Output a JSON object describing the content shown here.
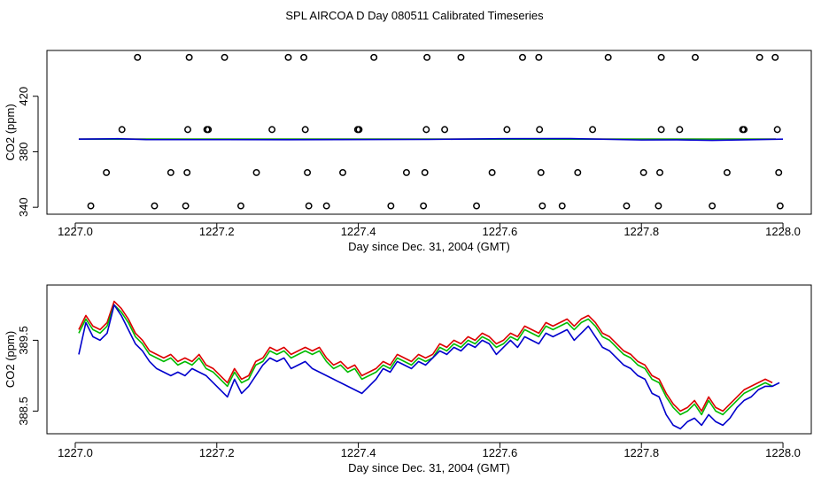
{
  "title": "SPL AIRCOA D  Day 080511  Calibrated Timeseries",
  "chart_data": [
    {
      "type": "scatter",
      "ylabel": "CO2 (ppm)",
      "xlabel": "Day since Dec. 31, 2004 (GMT)",
      "xlim": [
        1226.96,
        1228.04
      ],
      "ylim": [
        335,
        453
      ],
      "xticks": [
        1227.0,
        1227.2,
        1227.4,
        1227.6,
        1227.8,
        1228.0
      ],
      "xtick_labels": [
        "1227.0",
        "1227.2",
        "1227.4",
        "1227.6",
        "1227.8",
        "1228.0"
      ],
      "yticks": [
        340,
        380,
        420
      ],
      "ytick_labels": [
        "340",
        "380",
        "420"
      ],
      "points": [
        [
          1227.088,
          448
        ],
        [
          1227.161,
          448
        ],
        [
          1227.211,
          448
        ],
        [
          1227.301,
          448
        ],
        [
          1227.323,
          448
        ],
        [
          1227.422,
          448
        ],
        [
          1227.497,
          448
        ],
        [
          1227.545,
          448
        ],
        [
          1227.632,
          448
        ],
        [
          1227.655,
          448
        ],
        [
          1227.753,
          448
        ],
        [
          1227.828,
          448
        ],
        [
          1227.876,
          448
        ],
        [
          1227.967,
          448
        ],
        [
          1227.989,
          448
        ],
        [
          1227.066,
          396
        ],
        [
          1227.159,
          396
        ],
        [
          1227.186,
          396
        ],
        [
          1227.188,
          396
        ],
        [
          1227.278,
          396
        ],
        [
          1227.325,
          396
        ],
        [
          1227.399,
          396
        ],
        [
          1227.401,
          396
        ],
        [
          1227.496,
          396
        ],
        [
          1227.522,
          396
        ],
        [
          1227.61,
          396
        ],
        [
          1227.656,
          396
        ],
        [
          1227.731,
          396
        ],
        [
          1227.828,
          396
        ],
        [
          1227.854,
          396
        ],
        [
          1227.943,
          396
        ],
        [
          1227.945,
          396
        ],
        [
          1227.992,
          396
        ],
        [
          1227.044,
          365
        ],
        [
          1227.135,
          365
        ],
        [
          1227.158,
          365
        ],
        [
          1227.256,
          365
        ],
        [
          1227.328,
          365
        ],
        [
          1227.378,
          365
        ],
        [
          1227.468,
          365
        ],
        [
          1227.494,
          365
        ],
        [
          1227.589,
          365
        ],
        [
          1227.658,
          365
        ],
        [
          1227.71,
          365
        ],
        [
          1227.803,
          365
        ],
        [
          1227.826,
          365
        ],
        [
          1227.921,
          365
        ],
        [
          1227.994,
          365
        ],
        [
          1227.022,
          341
        ],
        [
          1227.112,
          341
        ],
        [
          1227.156,
          341
        ],
        [
          1227.234,
          341
        ],
        [
          1227.33,
          341
        ],
        [
          1227.355,
          341
        ],
        [
          1227.446,
          341
        ],
        [
          1227.492,
          341
        ],
        [
          1227.567,
          341
        ],
        [
          1227.66,
          341
        ],
        [
          1227.688,
          341
        ],
        [
          1227.779,
          341
        ],
        [
          1227.824,
          341
        ],
        [
          1227.9,
          341
        ],
        [
          1227.996,
          341
        ]
      ],
      "series": [
        {
          "name": "red",
          "color": "#dd0000",
          "values": [
            [
              1227.005,
              389.1
            ],
            [
              1227.8,
              389.1
            ],
            [
              1227.99,
              389.1
            ]
          ]
        },
        {
          "name": "green",
          "color": "#00bb00",
          "values": [
            [
              1227.005,
              389.1
            ],
            [
              1227.8,
              389.1
            ],
            [
              1227.99,
              389.1
            ]
          ]
        },
        {
          "name": "blue",
          "color": "#0000cc",
          "values": [
            [
              1227.005,
              389.1
            ],
            [
              1227.06,
              389.4
            ],
            [
              1227.1,
              388.8
            ],
            [
              1227.3,
              388.7
            ],
            [
              1227.5,
              388.9
            ],
            [
              1227.6,
              389.4
            ],
            [
              1227.7,
              389.5
            ],
            [
              1227.8,
              388.5
            ],
            [
              1227.85,
              388.6
            ],
            [
              1227.9,
              388.2
            ],
            [
              1228.0,
              389.1
            ]
          ]
        }
      ]
    },
    {
      "type": "line",
      "ylabel": "CO2 (ppm)",
      "xlabel": "Day since Dec. 31, 2004 (GMT)",
      "xlim": [
        1226.96,
        1228.04
      ],
      "ylim": [
        388.18,
        390.28
      ],
      "xticks": [
        1227.0,
        1227.2,
        1227.4,
        1227.6,
        1227.8,
        1228.0
      ],
      "xtick_labels": [
        "1227.0",
        "1227.2",
        "1227.4",
        "1227.6",
        "1227.8",
        "1228.0"
      ],
      "yticks": [
        388.5,
        389.5
      ],
      "ytick_labels": [
        "388.5",
        "389.5"
      ],
      "series": [
        {
          "name": "red",
          "color": "#dd0000",
          "x": [
            1227.005,
            1227.015,
            1227.025,
            1227.035,
            1227.045,
            1227.055,
            1227.065,
            1227.075,
            1227.085,
            1227.095,
            1227.105,
            1227.115,
            1227.125,
            1227.135,
            1227.145,
            1227.155,
            1227.165,
            1227.175,
            1227.185,
            1227.195,
            1227.205,
            1227.215,
            1227.225,
            1227.235,
            1227.245,
            1227.255,
            1227.265,
            1227.275,
            1227.285,
            1227.295,
            1227.305,
            1227.315,
            1227.325,
            1227.335,
            1227.345,
            1227.355,
            1227.365,
            1227.375,
            1227.385,
            1227.395,
            1227.405,
            1227.415,
            1227.425,
            1227.435,
            1227.445,
            1227.455,
            1227.465,
            1227.475,
            1227.485,
            1227.495,
            1227.505,
            1227.515,
            1227.525,
            1227.535,
            1227.545,
            1227.555,
            1227.565,
            1227.575,
            1227.585,
            1227.595,
            1227.605,
            1227.615,
            1227.625,
            1227.635,
            1227.645,
            1227.655,
            1227.665,
            1227.675,
            1227.685,
            1227.695,
            1227.705,
            1227.715,
            1227.725,
            1227.735,
            1227.745,
            1227.755,
            1227.765,
            1227.775,
            1227.785,
            1227.795,
            1227.805,
            1227.815,
            1227.825,
            1227.835,
            1227.845,
            1227.855,
            1227.865,
            1227.875,
            1227.885,
            1227.895,
            1227.905,
            1227.915,
            1227.925,
            1227.935,
            1227.945,
            1227.955,
            1227.965,
            1227.975,
            1227.985
          ],
          "values": [
            389.65,
            389.85,
            389.7,
            389.65,
            389.75,
            390.05,
            389.95,
            389.8,
            389.6,
            389.5,
            389.35,
            389.3,
            389.25,
            389.3,
            389.2,
            389.25,
            389.2,
            389.3,
            389.15,
            389.1,
            389.0,
            388.9,
            389.1,
            388.95,
            389.0,
            389.2,
            389.25,
            389.4,
            389.35,
            389.4,
            389.3,
            389.35,
            389.4,
            389.35,
            389.4,
            389.25,
            389.15,
            389.2,
            389.1,
            389.15,
            389.0,
            389.05,
            389.1,
            389.2,
            389.15,
            389.3,
            389.25,
            389.2,
            389.3,
            389.25,
            389.3,
            389.45,
            389.4,
            389.5,
            389.45,
            389.55,
            389.5,
            389.6,
            389.55,
            389.45,
            389.5,
            389.6,
            389.55,
            389.7,
            389.65,
            389.6,
            389.75,
            389.7,
            389.75,
            389.8,
            389.7,
            389.8,
            389.85,
            389.75,
            389.6,
            389.55,
            389.45,
            389.35,
            389.3,
            389.2,
            389.15,
            389.0,
            388.95,
            388.75,
            388.6,
            388.5,
            388.55,
            388.65,
            388.5,
            388.7,
            388.55,
            388.5,
            388.6,
            388.7,
            388.8,
            388.85,
            388.9,
            388.95,
            388.9
          ]
        },
        {
          "name": "green",
          "color": "#00bb00",
          "x": [
            1227.005,
            1227.015,
            1227.025,
            1227.035,
            1227.045,
            1227.055,
            1227.065,
            1227.075,
            1227.085,
            1227.095,
            1227.105,
            1227.115,
            1227.125,
            1227.135,
            1227.145,
            1227.155,
            1227.165,
            1227.175,
            1227.185,
            1227.195,
            1227.205,
            1227.215,
            1227.225,
            1227.235,
            1227.245,
            1227.255,
            1227.265,
            1227.275,
            1227.285,
            1227.295,
            1227.305,
            1227.315,
            1227.325,
            1227.335,
            1227.345,
            1227.355,
            1227.365,
            1227.375,
            1227.385,
            1227.395,
            1227.405,
            1227.415,
            1227.425,
            1227.435,
            1227.445,
            1227.455,
            1227.465,
            1227.475,
            1227.485,
            1227.495,
            1227.505,
            1227.515,
            1227.525,
            1227.535,
            1227.545,
            1227.555,
            1227.565,
            1227.575,
            1227.585,
            1227.595,
            1227.605,
            1227.615,
            1227.625,
            1227.635,
            1227.645,
            1227.655,
            1227.665,
            1227.675,
            1227.685,
            1227.695,
            1227.705,
            1227.715,
            1227.725,
            1227.735,
            1227.745,
            1227.755,
            1227.765,
            1227.775,
            1227.785,
            1227.795,
            1227.805,
            1227.815,
            1227.825,
            1227.835,
            1227.845,
            1227.855,
            1227.865,
            1227.875,
            1227.885,
            1227.895,
            1227.905,
            1227.915,
            1227.925,
            1227.935,
            1227.945,
            1227.955,
            1227.965,
            1227.975,
            1227.985
          ],
          "values": [
            389.6,
            389.8,
            389.65,
            389.6,
            389.7,
            390.0,
            389.9,
            389.75,
            389.55,
            389.45,
            389.3,
            389.25,
            389.2,
            389.25,
            389.15,
            389.2,
            389.15,
            389.25,
            389.1,
            389.05,
            388.95,
            388.85,
            389.05,
            388.9,
            388.95,
            389.15,
            389.2,
            389.35,
            389.3,
            389.35,
            389.25,
            389.3,
            389.35,
            389.3,
            389.35,
            389.2,
            389.1,
            389.15,
            389.05,
            389.1,
            388.95,
            389.0,
            389.05,
            389.15,
            389.1,
            389.25,
            389.2,
            389.15,
            389.25,
            389.2,
            389.25,
            389.4,
            389.35,
            389.45,
            389.4,
            389.5,
            389.45,
            389.55,
            389.5,
            389.4,
            389.45,
            389.55,
            389.5,
            389.65,
            389.6,
            389.55,
            389.7,
            389.65,
            389.7,
            389.75,
            389.65,
            389.75,
            389.8,
            389.7,
            389.55,
            389.5,
            389.4,
            389.3,
            389.25,
            389.15,
            389.1,
            388.95,
            388.9,
            388.7,
            388.55,
            388.45,
            388.5,
            388.6,
            388.45,
            388.65,
            388.5,
            388.45,
            388.55,
            388.65,
            388.75,
            388.8,
            388.85,
            388.9,
            388.85
          ]
        },
        {
          "name": "blue",
          "color": "#0000cc",
          "x": [
            1227.005,
            1227.015,
            1227.025,
            1227.035,
            1227.045,
            1227.055,
            1227.065,
            1227.075,
            1227.085,
            1227.095,
            1227.105,
            1227.115,
            1227.125,
            1227.135,
            1227.145,
            1227.155,
            1227.165,
            1227.175,
            1227.185,
            1227.195,
            1227.205,
            1227.215,
            1227.225,
            1227.235,
            1227.245,
            1227.255,
            1227.265,
            1227.275,
            1227.285,
            1227.295,
            1227.305,
            1227.315,
            1227.325,
            1227.335,
            1227.345,
            1227.355,
            1227.365,
            1227.375,
            1227.385,
            1227.395,
            1227.405,
            1227.415,
            1227.425,
            1227.435,
            1227.445,
            1227.455,
            1227.465,
            1227.475,
            1227.485,
            1227.495,
            1227.505,
            1227.515,
            1227.525,
            1227.535,
            1227.545,
            1227.555,
            1227.565,
            1227.575,
            1227.585,
            1227.595,
            1227.605,
            1227.615,
            1227.625,
            1227.635,
            1227.645,
            1227.655,
            1227.665,
            1227.675,
            1227.685,
            1227.695,
            1227.705,
            1227.715,
            1227.725,
            1227.735,
            1227.745,
            1227.755,
            1227.765,
            1227.775,
            1227.785,
            1227.795,
            1227.805,
            1227.815,
            1227.825,
            1227.835,
            1227.845,
            1227.855,
            1227.865,
            1227.875,
            1227.885,
            1227.895,
            1227.905,
            1227.915,
            1227.925,
            1227.935,
            1227.945,
            1227.955,
            1227.965,
            1227.975,
            1227.985,
            1227.995
          ],
          "values": [
            389.3,
            389.75,
            389.55,
            389.5,
            389.6,
            390.0,
            389.85,
            389.65,
            389.45,
            389.35,
            389.2,
            389.1,
            389.05,
            389.0,
            389.05,
            389.0,
            389.1,
            389.05,
            389.0,
            388.9,
            388.8,
            388.7,
            388.95,
            388.75,
            388.85,
            389.0,
            389.15,
            389.25,
            389.2,
            389.25,
            389.1,
            389.15,
            389.2,
            389.1,
            389.05,
            389.0,
            388.95,
            388.9,
            388.85,
            388.8,
            388.75,
            388.85,
            388.95,
            389.1,
            389.05,
            389.2,
            389.15,
            389.1,
            389.2,
            389.15,
            389.25,
            389.35,
            389.3,
            389.4,
            389.35,
            389.45,
            389.4,
            389.5,
            389.45,
            389.3,
            389.4,
            389.5,
            389.4,
            389.55,
            389.5,
            389.45,
            389.6,
            389.55,
            389.6,
            389.65,
            389.5,
            389.6,
            389.7,
            389.55,
            389.4,
            389.35,
            389.25,
            389.15,
            389.1,
            389.0,
            388.95,
            388.75,
            388.7,
            388.45,
            388.3,
            388.25,
            388.35,
            388.4,
            388.3,
            388.45,
            388.35,
            388.3,
            388.4,
            388.55,
            388.65,
            388.7,
            388.8,
            388.85,
            388.85,
            388.9
          ]
        }
      ]
    }
  ]
}
